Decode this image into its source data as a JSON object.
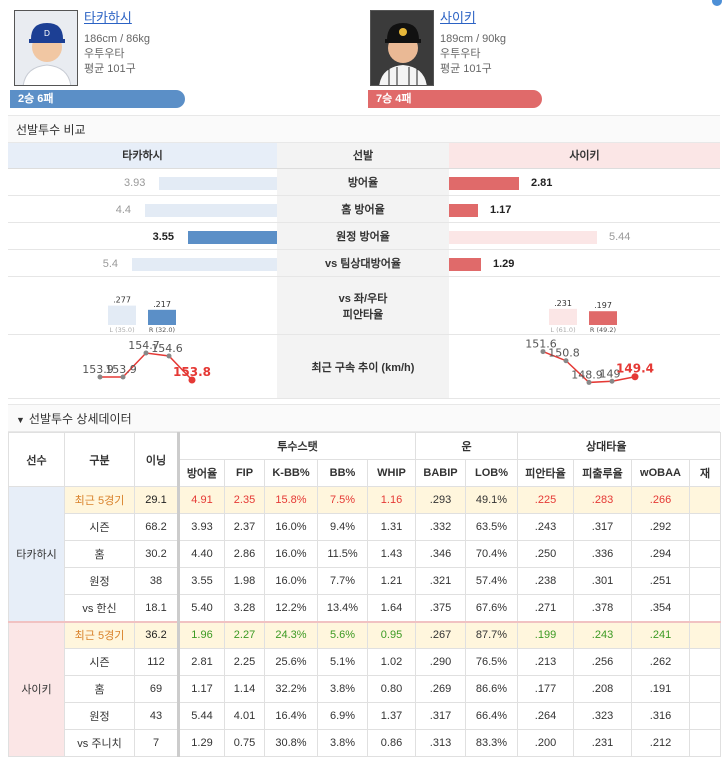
{
  "left_player": {
    "name": "타카하시",
    "height_weight": "186cm / 86kg",
    "throws_bats": "우투우타",
    "avg_pitches": "평균 101구",
    "record": "2승 6패",
    "color": "#5b8fc7"
  },
  "right_player": {
    "name": "사이키",
    "height_weight": "189cm / 90kg",
    "throws_bats": "우투우타",
    "avg_pitches": "평균 101구",
    "record": "7승 4패",
    "color": "#e06a6a"
  },
  "comparison": {
    "title": "선발투수 비교",
    "center_header": "선발",
    "rows": [
      {
        "label": "방어율",
        "left": "3.93",
        "right": "2.81",
        "left_bold": false,
        "right_bold": true
      },
      {
        "label": "홈 방어율",
        "left": "4.4",
        "right": "1.17",
        "left_bold": false,
        "right_bold": true
      },
      {
        "label": "원정 방어율",
        "left": "3.55",
        "right": "5.44",
        "left_bold": true,
        "right_bold": false
      },
      {
        "label": "vs 팀상대방어율",
        "left": "5.4",
        "right": "1.29",
        "left_bold": false,
        "right_bold": true
      }
    ],
    "split_label_1": "vs 좌/우타",
    "split_label_2": "피안타율",
    "left_split": {
      "l_val": ".277",
      "r_val": ".217",
      "l_label": "L (35.0)",
      "r_label": "R (32.0)",
      "l_num": 0.277,
      "r_num": 0.217
    },
    "right_split": {
      "l_val": ".231",
      "r_val": ".197",
      "l_label": "L (61.0)",
      "r_label": "R (49.2)",
      "l_num": 0.231,
      "r_num": 0.197
    },
    "velocity_label": "최근 구속 추이 (km/h)",
    "left_velocity": [
      {
        "v": 153.9,
        "t": "153.9"
      },
      {
        "v": 153.9,
        "t": "153.9"
      },
      {
        "v": 154.7,
        "t": "154.7"
      },
      {
        "v": 154.6,
        "t": "154.6"
      },
      {
        "v": 153.8,
        "t": "153.8"
      }
    ],
    "right_velocity": [
      {
        "v": 151.6,
        "t": "151.6"
      },
      {
        "v": 150.8,
        "t": "150.8"
      },
      {
        "v": 148.9,
        "t": "148.9"
      },
      {
        "v": 149.0,
        "t": "149"
      },
      {
        "v": 149.4,
        "t": "149.4"
      }
    ]
  },
  "details": {
    "title": "선발투수 상세데이터",
    "headers": {
      "player": "선수",
      "type": "구분",
      "inning": "이닝",
      "group_pitcher": "투수스탯",
      "group_luck": "운",
      "group_opp": "상대타율",
      "cols": [
        "방어율",
        "FIP",
        "K-BB%",
        "BB%",
        "WHIP",
        "BABIP",
        "LOB%",
        "피안타율",
        "피출루율",
        "wOBAA",
        "재"
      ]
    },
    "left_rows": [
      [
        "최근 5경기",
        "29.1",
        "4.91",
        "2.35",
        "15.8%",
        "7.5%",
        "1.16",
        ".293",
        "49.1%",
        ".225",
        ".283",
        ".266",
        ""
      ],
      [
        "시즌",
        "68.2",
        "3.93",
        "2.37",
        "16.0%",
        "9.4%",
        "1.31",
        ".332",
        "63.5%",
        ".243",
        ".317",
        ".292",
        ""
      ],
      [
        "홈",
        "30.2",
        "4.40",
        "2.86",
        "16.0%",
        "11.5%",
        "1.43",
        ".346",
        "70.4%",
        ".250",
        ".336",
        ".294",
        ""
      ],
      [
        "원정",
        "38",
        "3.55",
        "1.98",
        "16.0%",
        "7.7%",
        "1.21",
        ".321",
        "57.4%",
        ".238",
        ".301",
        ".251",
        ""
      ],
      [
        "vs 한신",
        "18.1",
        "5.40",
        "3.28",
        "12.2%",
        "13.4%",
        "1.64",
        ".375",
        "67.6%",
        ".271",
        ".378",
        ".354",
        ""
      ]
    ],
    "right_rows": [
      [
        "최근 5경기",
        "36.2",
        "1.96",
        "2.27",
        "24.3%",
        "5.6%",
        "0.95",
        ".267",
        "87.7%",
        ".199",
        ".243",
        ".241",
        ""
      ],
      [
        "시즌",
        "112",
        "2.81",
        "2.25",
        "25.6%",
        "5.1%",
        "1.02",
        ".290",
        "76.5%",
        ".213",
        ".256",
        ".262",
        ""
      ],
      [
        "홈",
        "69",
        "1.17",
        "1.14",
        "32.2%",
        "3.8%",
        "0.80",
        ".269",
        "86.6%",
        ".177",
        ".208",
        ".191",
        ""
      ],
      [
        "원정",
        "43",
        "5.44",
        "4.01",
        "16.4%",
        "6.9%",
        "1.37",
        ".317",
        "66.4%",
        ".264",
        ".323",
        ".316",
        ""
      ],
      [
        "vs 주니치",
        "7",
        "1.29",
        "0.75",
        "30.8%",
        "3.8%",
        "0.86",
        ".313",
        "83.3%",
        ".200",
        ".231",
        ".212",
        ""
      ]
    ]
  }
}
